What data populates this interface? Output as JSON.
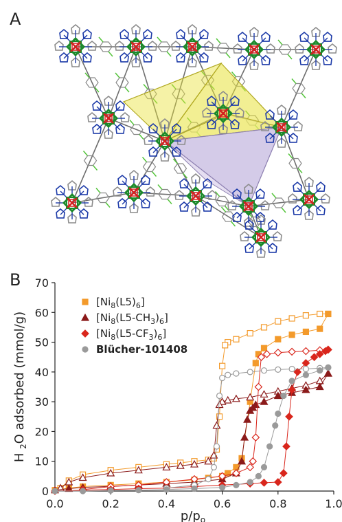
{
  "panels": {
    "a_label": "A",
    "b_label": "B"
  },
  "colors": {
    "ni": "#1b8a2a",
    "o": "#d42020",
    "n": "#1c3aa8",
    "c": "#8c8c8c",
    "f": "#53c43a",
    "octa": "#e8e23a",
    "tetra": "#b8a9d8",
    "l5": "#f39a2b",
    "ch3": "#8b1a1a",
    "cf3": "#d9261c",
    "blucher": "#9a9a9a"
  },
  "chart_data": {
    "type": "scatter",
    "title": "",
    "xlabel_main": "p/p",
    "xlabel_sub": "o",
    "ylabel_pre": "H",
    "ylabel_sub": "2",
    "ylabel_post": "O adsorbed (mmol/g)",
    "xlim": [
      0,
      1
    ],
    "ylim": [
      0,
      70
    ],
    "x_ticks": [
      "0.0",
      "0.2",
      "0.4",
      "0.6",
      "0.8",
      "1.0"
    ],
    "y_ticks": [
      "0",
      "10",
      "20",
      "30",
      "40",
      "50",
      "60",
      "70"
    ],
    "legend_position": "top-left",
    "series": [
      {
        "key": "l5",
        "name_parts": [
          "[Ni",
          "8",
          "(L5)",
          "6",
          "]"
        ],
        "marker": "square",
        "adsorption": {
          "x": [
            0.0,
            0.05,
            0.1,
            0.2,
            0.3,
            0.4,
            0.5,
            0.55,
            0.6,
            0.62,
            0.65,
            0.67,
            0.7,
            0.72,
            0.73,
            0.75,
            0.8,
            0.85,
            0.9,
            0.95,
            0.98
          ],
          "y": [
            0.3,
            1.0,
            1.5,
            2.0,
            2.5,
            3.0,
            3.8,
            4.4,
            5.0,
            6.0,
            8.0,
            11.0,
            30.0,
            43.0,
            46.0,
            48.0,
            51.0,
            52.5,
            53.5,
            54.5,
            59.5
          ]
        },
        "desorption": {
          "x": [
            0.98,
            0.95,
            0.9,
            0.85,
            0.8,
            0.75,
            0.7,
            0.65,
            0.62,
            0.61,
            0.6,
            0.59,
            0.58,
            0.57,
            0.55,
            0.5,
            0.45,
            0.4,
            0.3,
            0.2,
            0.1,
            0.05,
            0.02
          ],
          "y": [
            59.5,
            59.5,
            59.0,
            58.0,
            57.0,
            55.0,
            53.0,
            51.0,
            50.0,
            49.0,
            42.0,
            25.0,
            14.0,
            11.0,
            10.5,
            10.0,
            9.5,
            9.0,
            8.0,
            7.0,
            5.5,
            3.5,
            1.0
          ]
        }
      },
      {
        "key": "ch3",
        "name_parts": [
          "[Ni",
          "8",
          "(L5-CH",
          "3",
          ")",
          "6",
          "]"
        ],
        "marker": "triangle",
        "adsorption": {
          "x": [
            0.0,
            0.05,
            0.1,
            0.2,
            0.3,
            0.4,
            0.5,
            0.6,
            0.65,
            0.67,
            0.68,
            0.69,
            0.7,
            0.71,
            0.72,
            0.75,
            0.8,
            0.85,
            0.9,
            0.95,
            0.98
          ],
          "y": [
            0.3,
            0.8,
            1.2,
            1.6,
            2.0,
            2.5,
            3.0,
            4.0,
            6.0,
            10.0,
            18.0,
            24.0,
            27.0,
            28.0,
            29.0,
            30.0,
            32.0,
            33.0,
            34.0,
            35.0,
            39.5
          ]
        },
        "desorption": {
          "x": [
            0.98,
            0.95,
            0.9,
            0.85,
            0.8,
            0.75,
            0.7,
            0.65,
            0.62,
            0.6,
            0.59,
            0.58,
            0.57,
            0.55,
            0.5,
            0.45,
            0.4,
            0.3,
            0.2,
            0.1,
            0.05,
            0.02
          ],
          "y": [
            39.5,
            37.0,
            35.5,
            34.5,
            33.5,
            32.5,
            31.5,
            31.0,
            30.5,
            30.0,
            29.0,
            22.0,
            12.0,
            10.0,
            9.0,
            8.5,
            8.0,
            7.0,
            6.0,
            4.5,
            3.0,
            1.0
          ]
        }
      },
      {
        "key": "cf3",
        "name_parts": [
          "[Ni",
          "8",
          "(L5-CF",
          "3",
          ")",
          "6",
          "]"
        ],
        "marker": "diamond",
        "adsorption": {
          "x": [
            0.0,
            0.1,
            0.2,
            0.3,
            0.4,
            0.5,
            0.6,
            0.7,
            0.75,
            0.8,
            0.82,
            0.83,
            0.84,
            0.85,
            0.87,
            0.9,
            0.93,
            0.95,
            0.97,
            0.98
          ],
          "y": [
            0.0,
            0.3,
            0.5,
            0.8,
            1.0,
            1.5,
            2.0,
            2.5,
            2.8,
            3.0,
            6.0,
            15.0,
            25.0,
            34.0,
            40.0,
            43.0,
            45.0,
            46.0,
            47.0,
            47.5
          ]
        },
        "desorption": {
          "x": [
            0.98,
            0.95,
            0.9,
            0.85,
            0.8,
            0.76,
            0.74,
            0.73,
            0.72,
            0.71,
            0.7,
            0.65,
            0.6,
            0.5,
            0.4,
            0.3,
            0.2,
            0.1
          ],
          "y": [
            47.5,
            47.3,
            47.0,
            46.8,
            46.5,
            46.0,
            45.0,
            35.0,
            18.0,
            10.0,
            8.0,
            6.0,
            5.0,
            4.0,
            3.0,
            2.0,
            1.5,
            0.5
          ]
        }
      },
      {
        "key": "blucher",
        "name_parts": [
          "Blücher-101408"
        ],
        "marker": "circle",
        "adsorption": {
          "x": [
            0.0,
            0.1,
            0.2,
            0.3,
            0.4,
            0.5,
            0.6,
            0.65,
            0.7,
            0.73,
            0.75,
            0.77,
            0.79,
            0.8,
            0.82,
            0.85,
            0.9,
            0.95,
            0.98
          ],
          "y": [
            0.0,
            0.0,
            0.2,
            0.3,
            0.5,
            0.8,
            1.2,
            2.0,
            3.0,
            5.0,
            8.0,
            15.0,
            22.0,
            26.0,
            32.0,
            37.0,
            39.0,
            40.5,
            41.5
          ]
        },
        "desorption": {
          "x": [
            0.98,
            0.95,
            0.9,
            0.85,
            0.8,
            0.75,
            0.7,
            0.65,
            0.62,
            0.6,
            0.59,
            0.58,
            0.57,
            0.55,
            0.5,
            0.4
          ],
          "y": [
            41.5,
            41.3,
            41.0,
            41.0,
            40.8,
            40.5,
            40.0,
            39.5,
            39.0,
            38.0,
            32.0,
            15.0,
            8.0,
            4.0,
            2.0,
            1.0
          ]
        }
      }
    ]
  }
}
